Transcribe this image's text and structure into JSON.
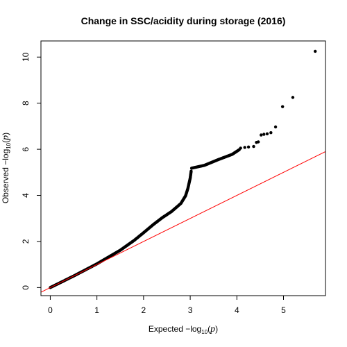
{
  "chart_data": {
    "type": "scatter",
    "title": "Change in SSC/acidity during storage (2016)",
    "xlabel": {
      "prefix": "Expected  −log",
      "sub": "10",
      "open": "(",
      "var": "p",
      "close": ")"
    },
    "ylabel": {
      "prefix": "Observed  −log",
      "sub": "10",
      "open": "(",
      "var": "p",
      "close": ")"
    },
    "xlim": [
      -0.2,
      5.9
    ],
    "ylim": [
      -0.35,
      10.7
    ],
    "x_ticks": [
      0,
      1,
      2,
      3,
      4,
      5
    ],
    "y_ticks": [
      0,
      2,
      4,
      6,
      8,
      10
    ],
    "grid": false,
    "reference_line": {
      "intercept": 0,
      "slope": 1,
      "color": "#ff0000"
    },
    "point_color": "#000000",
    "curve": {
      "x": [
        0,
        0.5,
        1.0,
        1.5,
        1.8,
        2.0,
        2.2,
        2.4,
        2.6,
        2.8,
        2.9,
        2.95,
        3.0,
        3.02
      ],
      "y": [
        0,
        0.5,
        1.03,
        1.62,
        2.05,
        2.38,
        2.72,
        3.03,
        3.3,
        3.65,
        3.98,
        4.3,
        4.75,
        5.05
      ]
    },
    "upper_curve": {
      "x": [
        3.03,
        3.3,
        3.6,
        3.9,
        4.05
      ],
      "y": [
        5.18,
        5.3,
        5.55,
        5.78,
        5.98
      ]
    },
    "points": {
      "x": [
        4.08,
        4.17,
        4.25,
        4.36,
        4.42,
        4.46,
        4.52,
        4.58,
        4.65,
        4.73,
        4.83,
        4.98,
        5.2,
        5.68
      ],
      "y": [
        6.05,
        6.08,
        6.1,
        6.12,
        6.3,
        6.32,
        6.62,
        6.65,
        6.67,
        6.72,
        6.97,
        7.85,
        8.25,
        10.25
      ]
    }
  }
}
